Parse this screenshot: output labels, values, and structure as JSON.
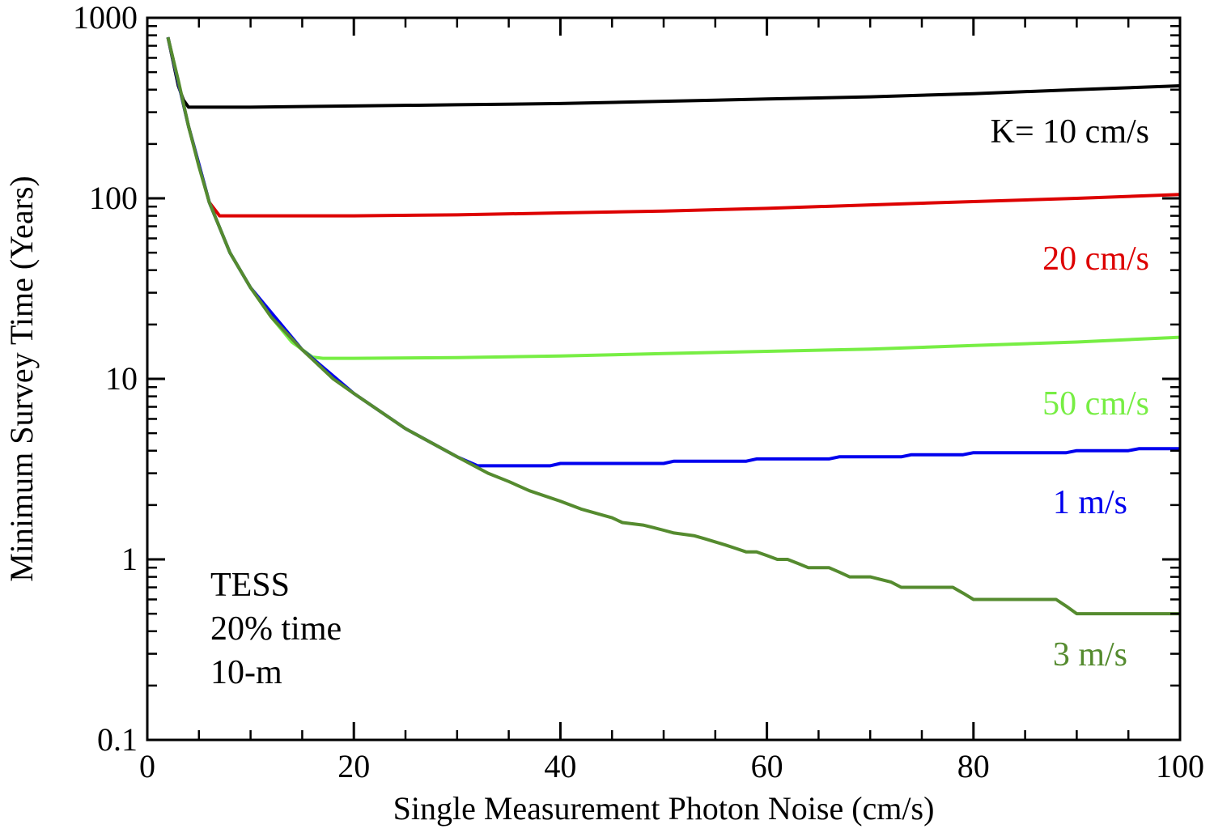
{
  "chart_data": {
    "type": "line",
    "title": "",
    "xlabel": "Single Measurement Photon Noise (cm/s)",
    "ylabel": "Minimum Survey Time (Years)",
    "xlim": [
      0,
      100
    ],
    "ylim": [
      0.1,
      1000
    ],
    "yscale": "log",
    "x_ticks": [
      0,
      20,
      40,
      60,
      80,
      100
    ],
    "x_tick_labels": [
      "0",
      "20",
      "40",
      "60",
      "80",
      "100"
    ],
    "y_ticks": [
      0.1,
      1,
      10,
      100,
      1000
    ],
    "y_tick_labels": [
      "0.1",
      "1",
      "10",
      "100",
      "1000"
    ],
    "legend": "none",
    "annotation": [
      "TESS",
      "20% time",
      "10-m"
    ],
    "series": [
      {
        "name": "K= 10 cm/s",
        "color": "#000000",
        "x": [
          2,
          3,
          3.5,
          4,
          10,
          20,
          30,
          40,
          50,
          60,
          70,
          80,
          90,
          100
        ],
        "y": [
          780,
          420,
          350,
          320,
          320,
          325,
          330,
          335,
          345,
          355,
          365,
          380,
          400,
          420
        ]
      },
      {
        "name": "20 cm/s",
        "color": "#dd0000",
        "x": [
          2,
          4,
          6,
          7,
          10,
          20,
          30,
          40,
          50,
          60,
          70,
          80,
          90,
          100
        ],
        "y": [
          780,
          250,
          95,
          80,
          80,
          80,
          81,
          83,
          85,
          88,
          92,
          96,
          100,
          105
        ]
      },
      {
        "name": "50 cm/s",
        "color": "#77ee44",
        "x": [
          2,
          4,
          6,
          8,
          10,
          12,
          14,
          16,
          17,
          20,
          30,
          40,
          50,
          60,
          70,
          80,
          90,
          100
        ],
        "y": [
          780,
          250,
          95,
          50,
          32,
          22,
          16,
          13.2,
          13,
          13,
          13.1,
          13.4,
          13.8,
          14.2,
          14.6,
          15.3,
          16,
          17
        ]
      },
      {
        "name": "1 m/s",
        "color": "#0000ee",
        "x": [
          2,
          4,
          6,
          8,
          10,
          15,
          20,
          25,
          30,
          32,
          39,
          40,
          50,
          51,
          58,
          59,
          66,
          67,
          73,
          74,
          79,
          80,
          89,
          90,
          95,
          96,
          100
        ],
        "y": [
          780,
          250,
          95,
          50,
          32,
          14.5,
          8.3,
          5.3,
          3.7,
          3.3,
          3.3,
          3.4,
          3.4,
          3.5,
          3.5,
          3.6,
          3.6,
          3.7,
          3.7,
          3.8,
          3.8,
          3.9,
          3.9,
          4.0,
          4.0,
          4.1,
          4.1
        ]
      },
      {
        "name": "3 m/s",
        "color": "#558b2f",
        "x": [
          2,
          3,
          4,
          5,
          6,
          8,
          10,
          12,
          15,
          18,
          20,
          25,
          30,
          33,
          35,
          37,
          40,
          42,
          45,
          46,
          48,
          49,
          50,
          51,
          53,
          54,
          55,
          56,
          57,
          58,
          59,
          60,
          61,
          62,
          63,
          64,
          65,
          66,
          67,
          68,
          69,
          70,
          72,
          73,
          76,
          78,
          79,
          80,
          82,
          84,
          86,
          88,
          89,
          90,
          100
        ],
        "y": [
          780,
          450,
          250,
          150,
          95,
          50,
          32,
          22,
          14.5,
          10,
          8.3,
          5.3,
          3.7,
          3.0,
          2.7,
          2.4,
          2.1,
          1.9,
          1.7,
          1.6,
          1.55,
          1.5,
          1.45,
          1.4,
          1.35,
          1.3,
          1.25,
          1.2,
          1.15,
          1.1,
          1.1,
          1.05,
          1.0,
          1.0,
          0.95,
          0.9,
          0.9,
          0.9,
          0.85,
          0.8,
          0.8,
          0.8,
          0.75,
          0.7,
          0.7,
          0.7,
          0.65,
          0.6,
          0.6,
          0.6,
          0.6,
          0.6,
          0.55,
          0.5,
          0.5
        ]
      }
    ]
  }
}
